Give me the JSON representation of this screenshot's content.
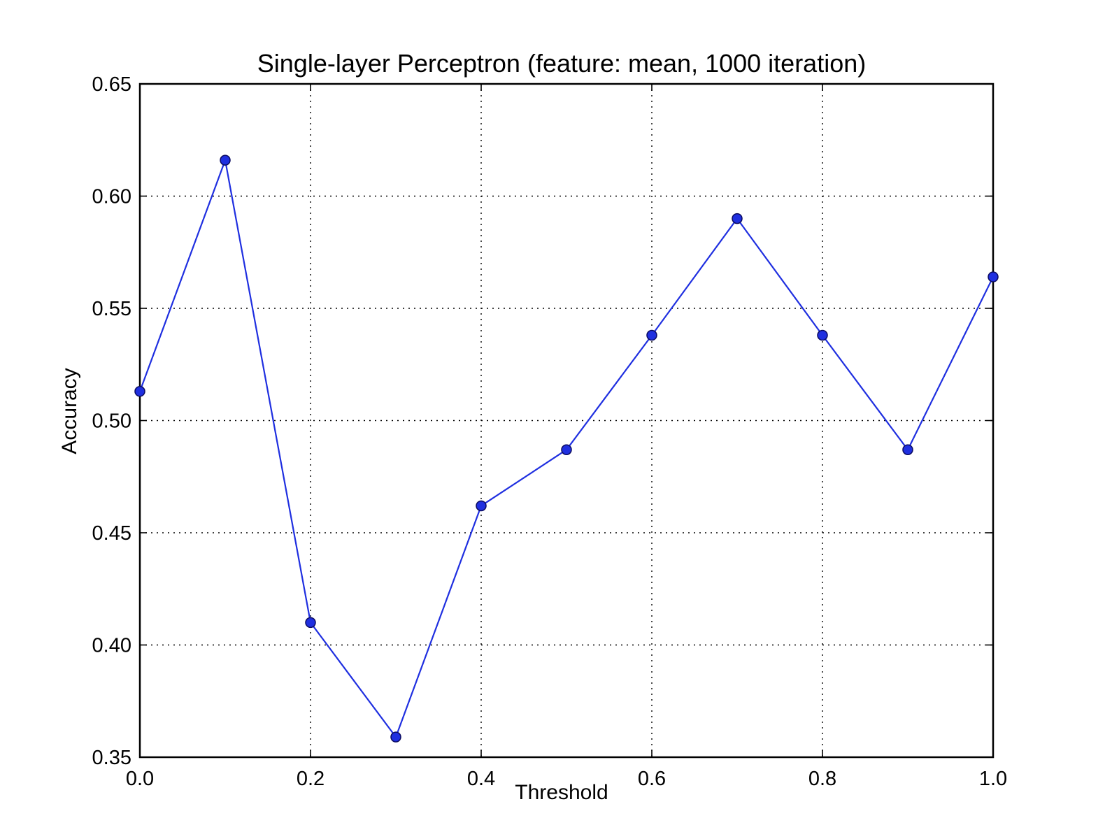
{
  "chart_data": {
    "type": "line",
    "title": "Single-layer Perceptron (feature: mean, 1000 iteration)",
    "xlabel": "Threshold",
    "ylabel": "Accuracy",
    "xlim": [
      0.0,
      1.0
    ],
    "ylim": [
      0.35,
      0.65
    ],
    "xticks": [
      0.0,
      0.2,
      0.4,
      0.6,
      0.8,
      1.0
    ],
    "xtick_labels": [
      "0.0",
      "0.2",
      "0.4",
      "0.6",
      "0.8",
      "1.0"
    ],
    "yticks": [
      0.35,
      0.4,
      0.45,
      0.5,
      0.55,
      0.6,
      0.65
    ],
    "ytick_labels": [
      "0.35",
      "0.40",
      "0.45",
      "0.50",
      "0.55",
      "0.60",
      "0.65"
    ],
    "grid": true,
    "series": [
      {
        "color": "#1f2fe0",
        "marker": "circle",
        "x": [
          0.0,
          0.1,
          0.2,
          0.3,
          0.4,
          0.5,
          0.6,
          0.7,
          0.8,
          0.9,
          1.0
        ],
        "y": [
          0.513,
          0.616,
          0.41,
          0.359,
          0.462,
          0.487,
          0.538,
          0.59,
          0.538,
          0.487,
          0.564
        ]
      }
    ]
  }
}
